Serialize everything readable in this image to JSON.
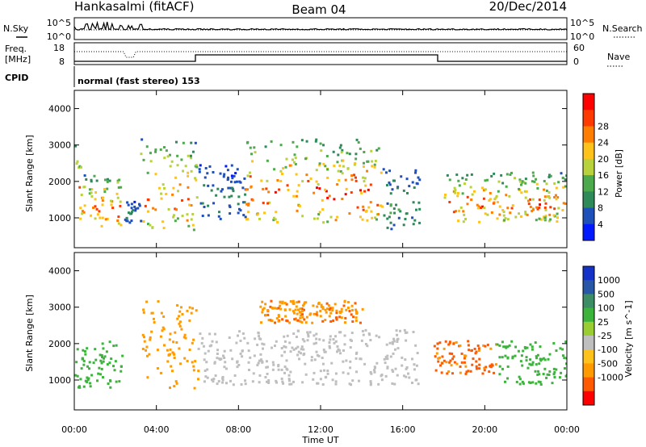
{
  "header": {
    "station": "Hankasalmi (fitACF)",
    "beam": "Beam 04",
    "date": "20/Dec/2014"
  },
  "noise_panel": {
    "left_label": "N.Sky",
    "right_label": "N.Search",
    "ticks_left": [
      "10^5",
      "10^0"
    ],
    "ticks_right": [
      "10^5",
      "10^0"
    ]
  },
  "freq_panel": {
    "left_label_line1": "Freq.",
    "left_label_line2": "[MHz]",
    "right_label": "Nave",
    "ticks_left": [
      "18",
      "8"
    ],
    "ticks_right": [
      "60",
      "0"
    ]
  },
  "cpid_panel": {
    "label": "CPID",
    "text": "normal (fast stereo) 153"
  },
  "x_axis": {
    "label": "Time UT",
    "ticks": [
      "00:00",
      "04:00",
      "08:00",
      "12:00",
      "16:00",
      "20:00",
      "00:00"
    ]
  },
  "colors": {
    "power_scale": [
      "#0019ff",
      "#1f4fb8",
      "#2f8a5a",
      "#4caa4c",
      "#b7d23c",
      "#ffc21a",
      "#ff7d00",
      "#ff3a00",
      "#ff0000"
    ],
    "velocity_scale": [
      "#ff0000",
      "#ff5a00",
      "#ff9a00",
      "#ffc21a",
      "#bebebe",
      "#9acd32",
      "#3cb43c",
      "#3c8c64",
      "#2857a8",
      "#1432c8"
    ]
  },
  "chart_data": [
    {
      "type": "heatmap",
      "name": "power",
      "ylabel": "Slant Range [km]",
      "xlabel": "",
      "ylim": [
        180,
        4500
      ],
      "yticks": [
        "1000",
        "2000",
        "3000",
        "4000"
      ],
      "colorbar_label": "Power [dB]",
      "colorbar_ticks": [
        "4",
        "8",
        "12",
        "16",
        "20",
        "24",
        "28"
      ],
      "colorbar_range": [
        0,
        32
      ],
      "echo_regions_hours": [
        {
          "t0": 0.0,
          "t1": 0.3,
          "r0": 700,
          "r1": 3200,
          "peak_dB": 28
        },
        {
          "t0": 0.3,
          "t1": 2.3,
          "r0": 800,
          "r1": 2200,
          "peak_dB": 28
        },
        {
          "t0": 2.4,
          "t1": 3.2,
          "r0": 900,
          "r1": 1500,
          "peak_dB": 10
        },
        {
          "t0": 3.2,
          "t1": 6.0,
          "r0": 700,
          "r1": 3200,
          "peak_dB": 28
        },
        {
          "t0": 6.0,
          "t1": 8.3,
          "r0": 1000,
          "r1": 2500,
          "peak_dB": 10
        },
        {
          "t0": 8.3,
          "t1": 15.0,
          "r0": 900,
          "r1": 3200,
          "peak_dB": 30
        },
        {
          "t0": 15.0,
          "t1": 16.8,
          "r0": 700,
          "r1": 2400,
          "peak_dB": 12
        },
        {
          "t0": 18.0,
          "t1": 24.0,
          "r0": 900,
          "r1": 2300,
          "peak_dB": 28
        }
      ]
    },
    {
      "type": "heatmap",
      "name": "velocity",
      "ylabel": "Slant Range [km]",
      "xlabel": "Time UT",
      "ylim": [
        180,
        4500
      ],
      "yticks": [
        "1000",
        "2000",
        "3000",
        "4000"
      ],
      "colorbar_label": "Velocity [m s^-1]",
      "colorbar_ticks": [
        "1000",
        "500",
        "100",
        "25",
        "-25",
        "-100",
        "-500",
        "-1000"
      ],
      "echo_regions_hours": [
        {
          "t0": 0.0,
          "t1": 2.3,
          "r0": 800,
          "r1": 2100,
          "velocity_ms": 200
        },
        {
          "t0": 3.2,
          "t1": 6.0,
          "r0": 800,
          "r1": 3200,
          "velocity_ms": -300
        },
        {
          "t0": 6.0,
          "t1": 16.8,
          "r0": 900,
          "r1": 2400,
          "velocity_ms": 0
        },
        {
          "t0": 9.0,
          "t1": 14.0,
          "r0": 2600,
          "r1": 3200,
          "velocity_ms": -400
        },
        {
          "t0": 17.5,
          "t1": 20.5,
          "r0": 1200,
          "r1": 2100,
          "velocity_ms": -600
        },
        {
          "t0": 20.5,
          "t1": 24.0,
          "r0": 900,
          "r1": 2100,
          "velocity_ms": 300
        }
      ]
    }
  ]
}
